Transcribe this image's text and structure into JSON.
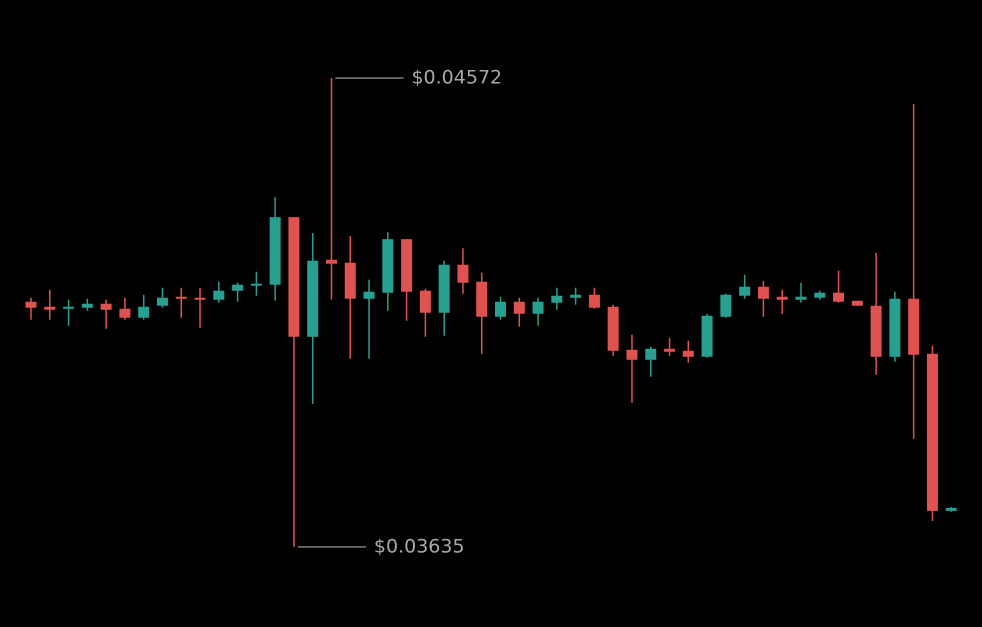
{
  "chart_data": {
    "type": "candlestick",
    "up_color": "#26a090",
    "down_color": "#e0524f",
    "ylim": [
      0.03475,
      0.04728
    ],
    "open": [
      0.04125,
      0.04115,
      0.04111,
      0.04113,
      0.04121,
      0.04111,
      0.04093,
      0.04117,
      0.04135,
      0.04133,
      0.04129,
      0.04147,
      0.04157,
      0.04159,
      0.04294,
      0.04055,
      0.04209,
      0.04203,
      0.04131,
      0.04143,
      0.0425,
      0.04147,
      0.04103,
      0.04199,
      0.04165,
      0.04095,
      0.04125,
      0.04101,
      0.04123,
      0.04133,
      0.04139,
      0.04115,
      0.04029,
      0.04009,
      0.04031,
      0.04027,
      0.04015,
      0.04095,
      0.04137,
      0.04155,
      0.04135,
      0.04129,
      0.04133,
      0.04143,
      0.04127,
      0.04117,
      0.04015,
      0.04131,
      0.04021,
      0.03707
    ],
    "high": [
      0.04133,
      0.04149,
      0.04129,
      0.04131,
      0.04129,
      0.04133,
      0.04139,
      0.04153,
      0.04153,
      0.04153,
      0.04165,
      0.04163,
      0.04185,
      0.04334,
      0.04294,
      0.04262,
      0.04572,
      0.04256,
      0.04169,
      0.04264,
      0.0425,
      0.04151,
      0.04207,
      0.04232,
      0.04183,
      0.04135,
      0.04133,
      0.04133,
      0.04153,
      0.04153,
      0.04153,
      0.04119,
      0.04059,
      0.04035,
      0.04053,
      0.04047,
      0.04101,
      0.04141,
      0.04179,
      0.04167,
      0.04149,
      0.04163,
      0.04147,
      0.04187,
      0.04127,
      0.04223,
      0.04145,
      0.0452,
      0.04037,
      0.03715
    ],
    "low": [
      0.04089,
      0.04089,
      0.04077,
      0.04107,
      0.04071,
      0.04089,
      0.04089,
      0.04113,
      0.04093,
      0.04073,
      0.04123,
      0.04125,
      0.04137,
      0.04127,
      0.03635,
      0.03921,
      0.04129,
      0.04011,
      0.04011,
      0.04107,
      0.04087,
      0.04055,
      0.04057,
      0.04141,
      0.04021,
      0.04089,
      0.04075,
      0.04077,
      0.04109,
      0.04119,
      0.04111,
      0.04017,
      0.03923,
      0.03975,
      0.04017,
      0.04003,
      0.04013,
      0.04093,
      0.04131,
      0.04095,
      0.04101,
      0.04123,
      0.04129,
      0.04123,
      0.04117,
      0.03979,
      0.04005,
      0.03851,
      0.03687,
      0.03705
    ],
    "close": [
      0.04113,
      0.04109,
      0.04115,
      0.04121,
      0.04109,
      0.04093,
      0.04115,
      0.04133,
      0.04131,
      0.04129,
      0.04147,
      0.04159,
      0.04161,
      0.04294,
      0.04055,
      0.04207,
      0.04201,
      0.04131,
      0.04145,
      0.0425,
      0.04145,
      0.04103,
      0.04199,
      0.04163,
      0.04095,
      0.04125,
      0.04101,
      0.04125,
      0.04137,
      0.04139,
      0.04113,
      0.04027,
      0.04009,
      0.04031,
      0.04025,
      0.04015,
      0.04097,
      0.04139,
      0.04155,
      0.04131,
      0.04129,
      0.04135,
      0.04143,
      0.04125,
      0.04117,
      0.04015,
      0.04131,
      0.04019,
      0.03707,
      0.03713
    ],
    "annotations": [
      {
        "label": "$0.04572",
        "value": 0.04572,
        "at": "high"
      },
      {
        "label": "$0.03635",
        "value": 0.03635,
        "at": "low"
      }
    ]
  }
}
